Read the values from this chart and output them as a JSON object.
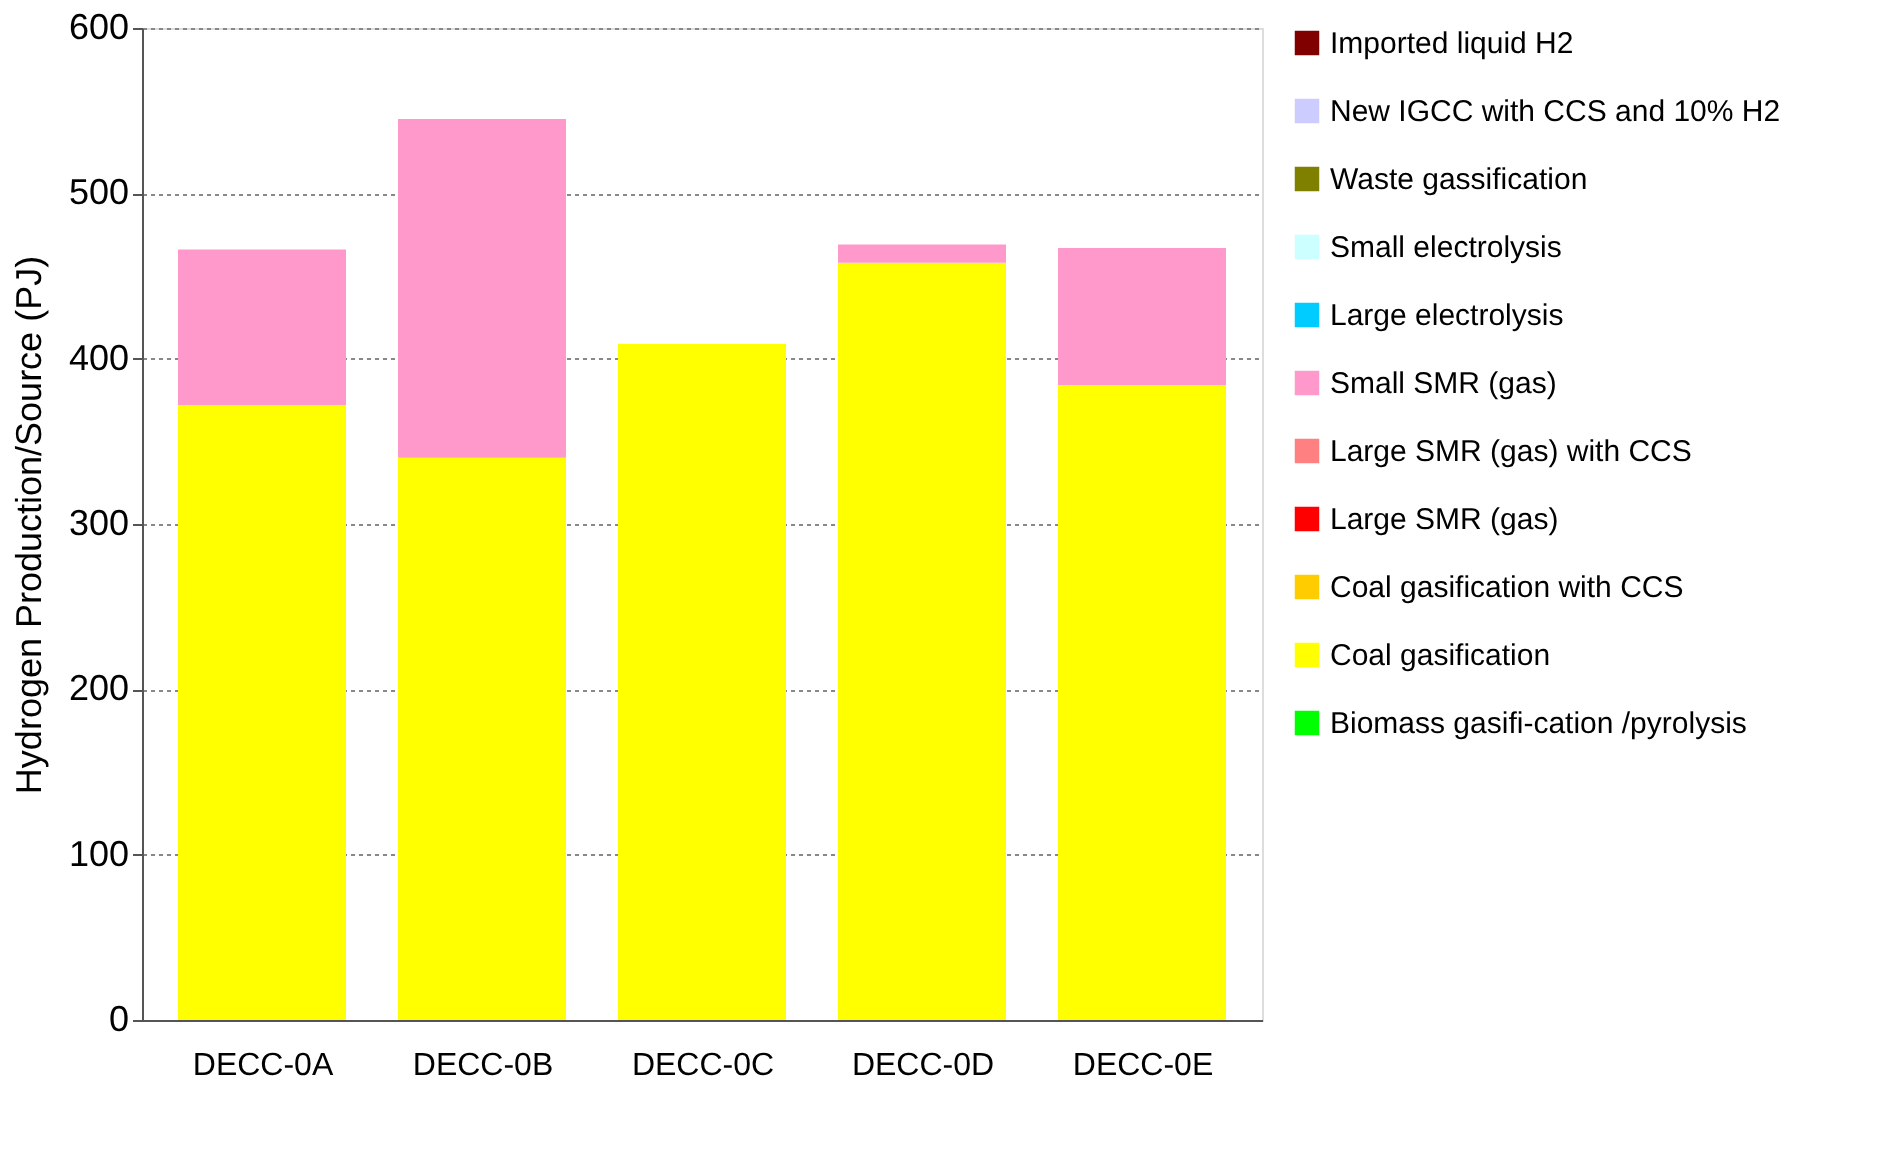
{
  "chart_data": {
    "type": "bar",
    "stacked": true,
    "ylabel": "Hydrogen Production/Source (PJ)",
    "categories": [
      "DECC-0A",
      "DECC-0B",
      "DECC-0C",
      "DECC-0D",
      "DECC-0E"
    ],
    "series": [
      {
        "name": "Biomass gasifi-cation /pyrolysis",
        "color": "#00ff00",
        "values": [
          0,
          0,
          0,
          0,
          0
        ]
      },
      {
        "name": "Coal gasification",
        "color": "#ffff00",
        "values": [
          372,
          340,
          409,
          458,
          384
        ]
      },
      {
        "name": "Coal gasification with CCS",
        "color": "#ffcc00",
        "values": [
          0,
          0,
          0,
          0,
          0
        ]
      },
      {
        "name": "Large SMR (gas)",
        "color": "#ff0000",
        "values": [
          0,
          0,
          0,
          0,
          0
        ]
      },
      {
        "name": "Large SMR (gas) with CCS",
        "color": "#ff8080",
        "values": [
          0,
          0,
          0,
          0,
          0
        ]
      },
      {
        "name": "Small SMR (gas)",
        "color": "#ff99cc",
        "values": [
          94,
          205,
          0,
          11,
          83
        ]
      },
      {
        "name": "Large electrolysis",
        "color": "#00ccff",
        "values": [
          0,
          0,
          0,
          0,
          0
        ]
      },
      {
        "name": "Small electrolysis",
        "color": "#ccffff",
        "values": [
          0,
          0,
          0,
          0,
          0
        ]
      },
      {
        "name": "Waste gassification",
        "color": "#808000",
        "values": [
          0,
          0,
          0,
          0,
          0
        ]
      },
      {
        "name": "New IGCC with CCS and 10% H2",
        "color": "#ccccff",
        "values": [
          0,
          0,
          0,
          0,
          0
        ]
      },
      {
        "name": "Imported liquid H2",
        "color": "#800000",
        "values": [
          0,
          0,
          0,
          0,
          0
        ]
      }
    ],
    "ylim": [
      0,
      600
    ],
    "yticks": [
      0,
      100,
      200,
      300,
      400,
      500,
      600
    ],
    "grid": "y",
    "legend": "right"
  }
}
